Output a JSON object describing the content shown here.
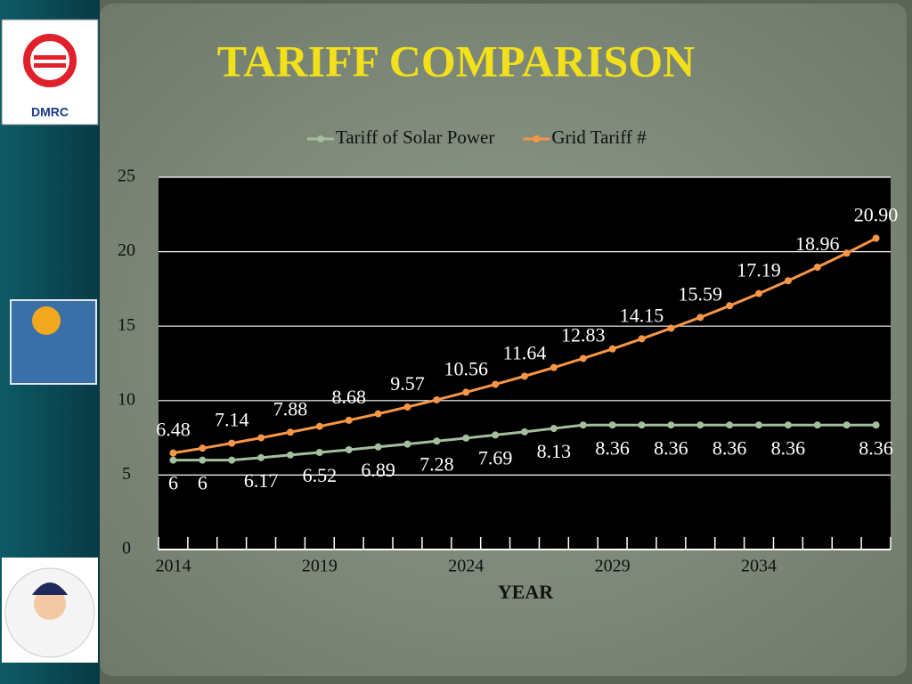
{
  "logo_text": "DMRC",
  "chart_data": {
    "type": "line",
    "title": "TARIFF COMPARISON",
    "x_label": "YEAR",
    "categories": [
      "2014",
      null,
      null,
      null,
      null,
      "2019",
      null,
      null,
      null,
      null,
      "2024",
      null,
      null,
      null,
      null,
      "2029",
      null,
      null,
      null,
      null,
      "2034",
      null,
      null,
      null,
      null
    ],
    "series": [
      {
        "name": "Tariff of Solar Power",
        "color": "#a3bf9c",
        "values": [
          6,
          6,
          6,
          6.17,
          6.35,
          6.52,
          6.7,
          6.89,
          7.08,
          7.28,
          7.48,
          7.69,
          7.9,
          8.13,
          8.36,
          8.36,
          8.36,
          8.36,
          8.36,
          8.36,
          8.36,
          8.36,
          8.36,
          8.36,
          8.36
        ],
        "value_labels": [
          "6",
          "6",
          null,
          "6.17",
          null,
          "6.52",
          null,
          "6.89",
          null,
          "7.28",
          null,
          "7.69",
          null,
          "8.13",
          null,
          "8.36",
          null,
          "8.36",
          null,
          "8.36",
          null,
          "8.36",
          null,
          null,
          "8.36"
        ]
      },
      {
        "name": "Grid Tariff #",
        "color": "#f79646",
        "values": [
          6.48,
          6.8,
          7.14,
          7.5,
          7.88,
          8.27,
          8.68,
          9.11,
          9.57,
          10.05,
          10.56,
          11.09,
          11.64,
          12.22,
          12.83,
          13.47,
          14.15,
          14.86,
          15.59,
          16.37,
          17.19,
          18.05,
          18.96,
          19.9,
          20.9
        ],
        "value_labels": [
          "6.48",
          null,
          "7.14",
          null,
          "7.88",
          null,
          "8.68",
          null,
          "9.57",
          null,
          "10.56",
          null,
          "11.64",
          null,
          "12.83",
          null,
          "14.15",
          null,
          "15.59",
          null,
          "17.19",
          null,
          "18.96",
          null,
          "20.90"
        ]
      }
    ],
    "ylim": [
      0,
      25
    ],
    "yticks": [
      0,
      5,
      10,
      15,
      20,
      25
    ],
    "grid": true,
    "legend": "top"
  }
}
